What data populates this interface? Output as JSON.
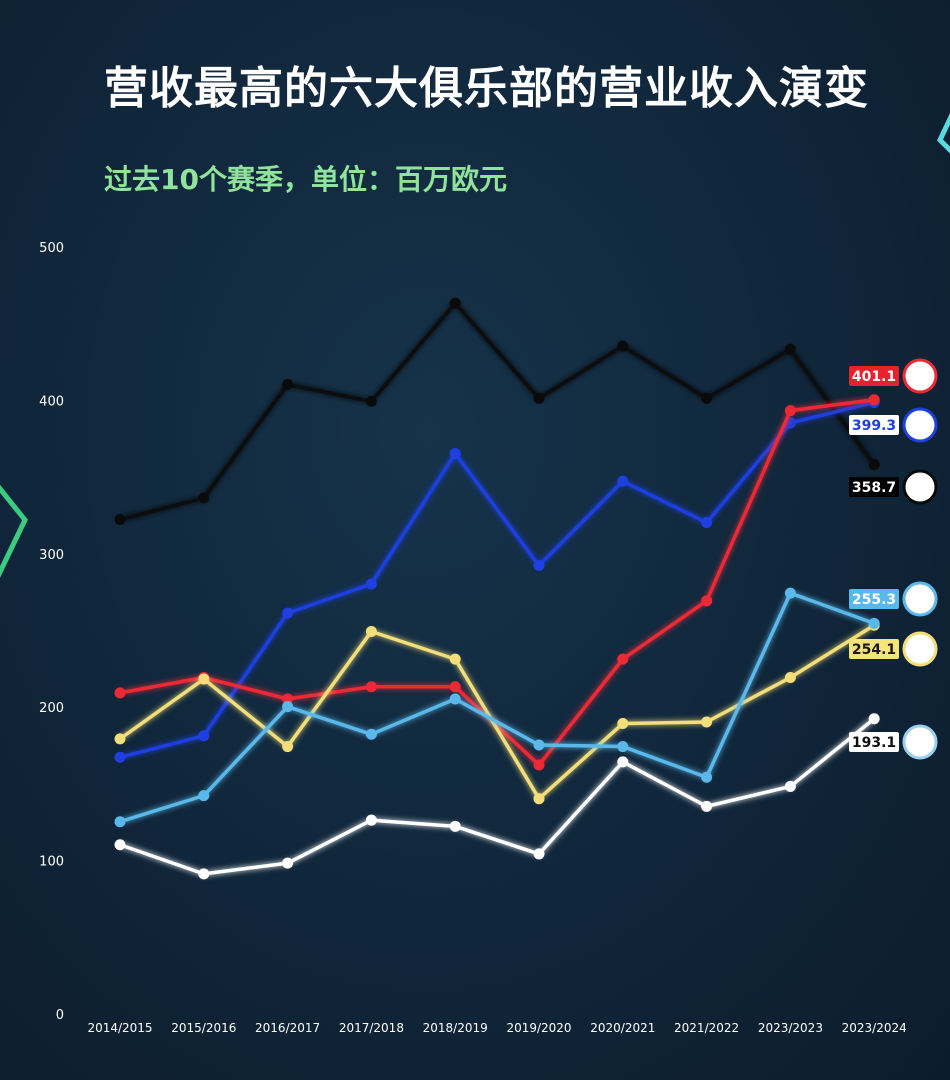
{
  "title": "营收最高的六大俱乐部的营业收入演变",
  "subtitle": "过去10个赛季，单位：百万欧元",
  "chart_data": {
    "type": "line",
    "ylim": [
      0,
      500
    ],
    "yticks": [
      0,
      100,
      200,
      300,
      400,
      500
    ],
    "grid": false,
    "categories": [
      "2014/2015",
      "2015/2016",
      "2016/2017",
      "2017/2018",
      "2018/2019",
      "2019/2020",
      "2020/2021",
      "2021/2022",
      "2023/2023",
      "2023/2024"
    ],
    "series": [
      {
        "color": "#0a0a0a",
        "icon": "juventus-logo",
        "label": "358.7",
        "label_bg": "#000000",
        "label_color": "#ffffff",
        "values": [
          323,
          337,
          411,
          400,
          464,
          402,
          436,
          402,
          434,
          358.7
        ]
      },
      {
        "color": "#1f3fe0",
        "icon": "inter-logo",
        "label": "399.3",
        "label_bg": "#ffffff",
        "label_color": "#1f3fe0",
        "values": [
          168,
          182,
          262,
          281,
          366,
          293,
          348,
          321,
          386,
          399.3
        ]
      },
      {
        "color": "#ec2a36",
        "icon": "ac-milan-logo",
        "label": "401.1",
        "label_bg": "#e8222d",
        "label_color": "#ffffff",
        "values": [
          210,
          220,
          206,
          214,
          214,
          163,
          232,
          270,
          394,
          401.1
        ]
      },
      {
        "color": "#f3de7a",
        "icon": "as-roma-logo",
        "label": "254.1",
        "label_bg": "#f5e37c",
        "label_color": "#1a1a1a",
        "values": [
          180,
          219,
          175,
          250,
          232,
          141,
          190,
          191,
          220,
          254.1
        ]
      },
      {
        "color": "#5ab9ea",
        "icon": "napoli-logo",
        "label": "255.3",
        "label_bg": "#57b9ea",
        "label_color": "#ffffff",
        "values": [
          126,
          143,
          201,
          183,
          206,
          176,
          175,
          155,
          275,
          255.3
        ]
      },
      {
        "color": "#ffffff",
        "icon": "lazio-logo",
        "label": "193.1",
        "label_bg": "#ffffff",
        "label_color": "#111111",
        "values": [
          111,
          92,
          99,
          127,
          123,
          105,
          165,
          136,
          149,
          193.1
        ]
      }
    ]
  }
}
